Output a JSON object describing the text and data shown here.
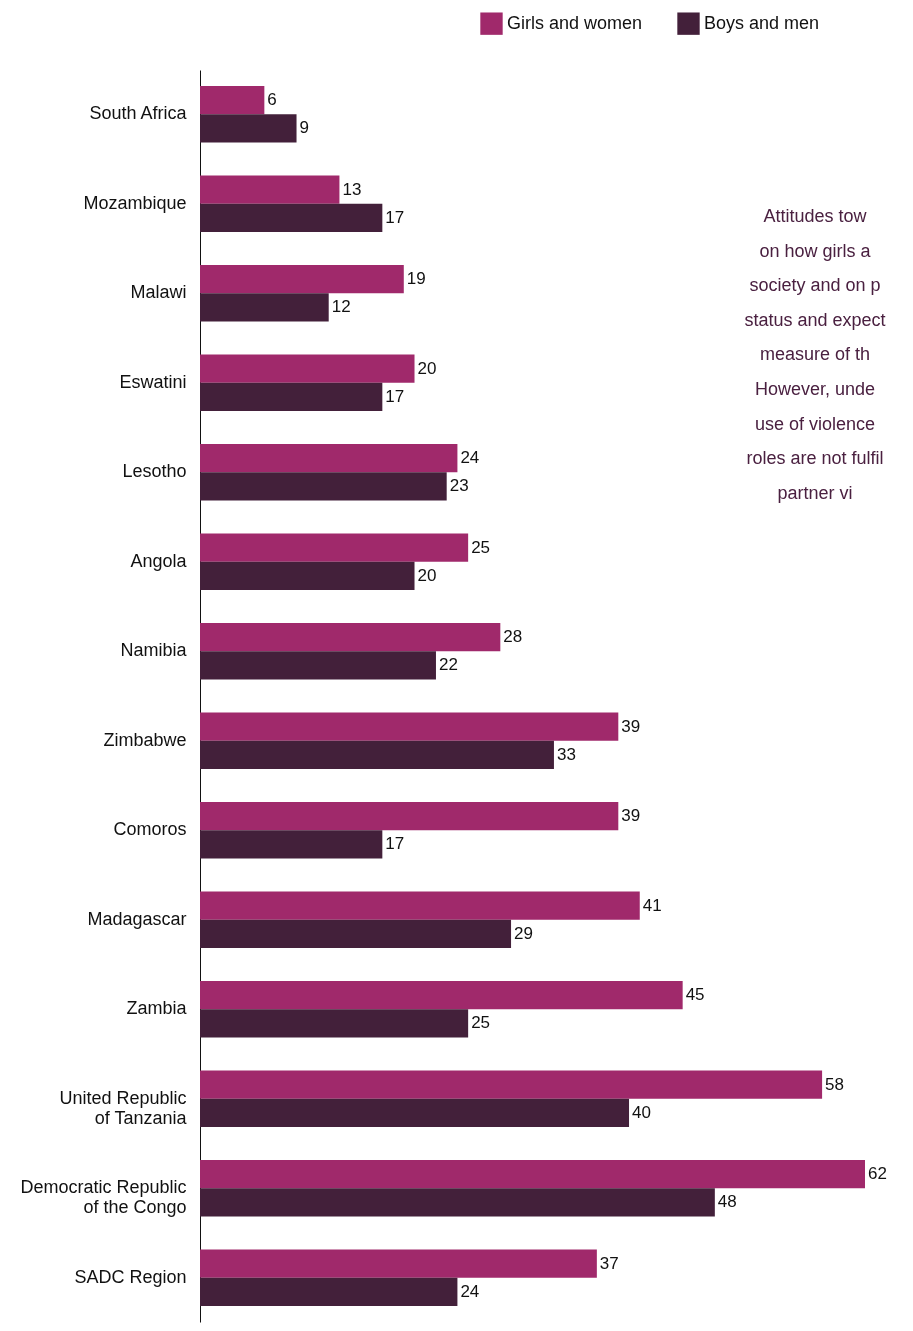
{
  "chart_data": {
    "type": "bar",
    "orientation": "horizontal",
    "data_labels": true,
    "legend": "top right",
    "grid": false,
    "categories": [
      "South Africa",
      "Mozambique",
      "Malawi",
      "Eswatini",
      "Lesotho",
      "Angola",
      "Namibia",
      "Zimbabwe",
      "Comoros",
      "Madagascar",
      "Zambia",
      "United Republic of Tanzania",
      "Democratic Republic of the Congo",
      "SADC Region"
    ],
    "series": [
      {
        "name": "Girls and women",
        "color": "#a0296b",
        "values": [
          6,
          13,
          19,
          20,
          24,
          25,
          28,
          39,
          39,
          41,
          45,
          58,
          62,
          37
        ]
      },
      {
        "name": "Boys and men",
        "color": "#43203a",
        "values": [
          9,
          17,
          12,
          17,
          23,
          20,
          22,
          33,
          17,
          29,
          25,
          40,
          48,
          24
        ]
      }
    ],
    "annotations": [
      "Attitudes tow",
      "on how girls a",
      "society and on p",
      "status and expect",
      "measure of th",
      "However, unde",
      "use of violence",
      "roles are not fulfil",
      "partner vi"
    ]
  }
}
